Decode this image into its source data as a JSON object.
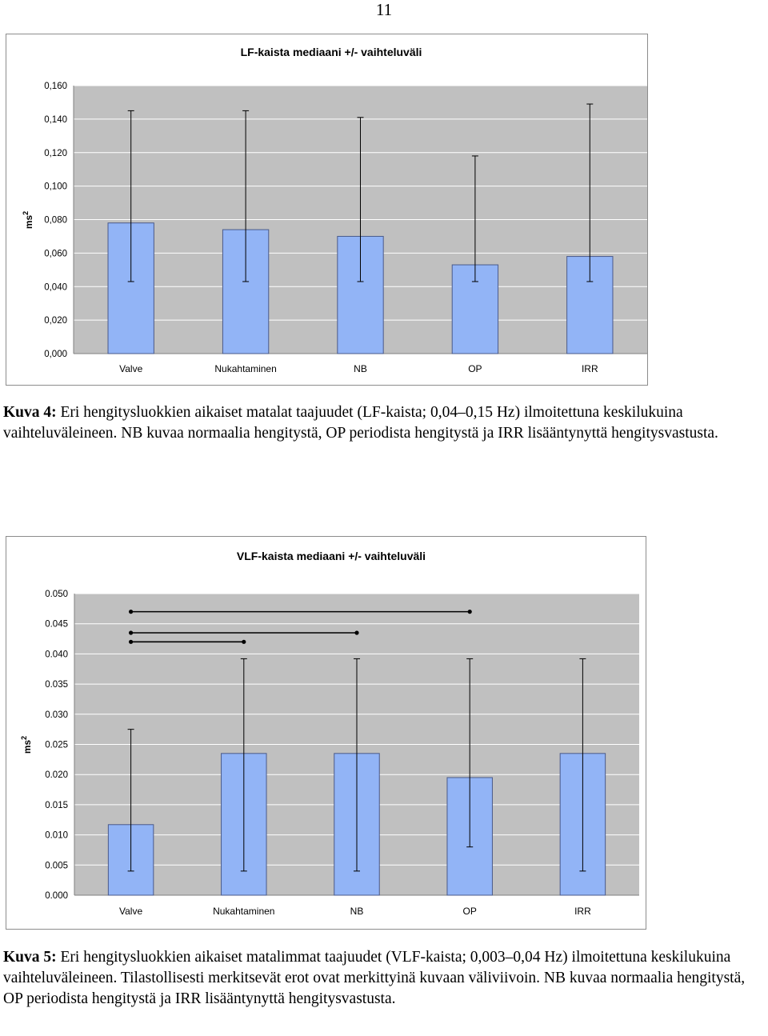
{
  "page_number": "11",
  "colors": {
    "bar": "#92b4f6",
    "bar_border": "#4a5a8a",
    "plot_bg": "#c0c0c0",
    "grid": "#ffffff",
    "line": "#000000"
  },
  "chart_data": [
    {
      "type": "bar",
      "title": "LF-kaista mediaani +/- vaihteluväli",
      "ylabel": "ms2",
      "ylim": [
        0,
        0.16
      ],
      "yticks": [
        0,
        0.02,
        0.04,
        0.06,
        0.08,
        0.1,
        0.12,
        0.14,
        0.16
      ],
      "ytick_labels": [
        "0,000",
        "0,020",
        "0,040",
        "0,060",
        "0,080",
        "0,100",
        "0,120",
        "0,140",
        "0,160"
      ],
      "categories": [
        "Valve",
        "Nukahtaminen",
        "NB",
        "OP",
        "IRR"
      ],
      "values": [
        0.078,
        0.074,
        0.07,
        0.053,
        0.058
      ],
      "error_low": [
        0.043,
        0.043,
        0.043,
        0.043,
        0.043
      ],
      "error_high": [
        0.145,
        0.145,
        0.141,
        0.118,
        0.149
      ],
      "grid": true
    },
    {
      "type": "bar",
      "title": "VLF-kaista mediaani +/- vaihteluväli",
      "ylabel": "ms2",
      "ylim": [
        0,
        0.05
      ],
      "yticks": [
        0,
        0.005,
        0.01,
        0.015,
        0.02,
        0.025,
        0.03,
        0.035,
        0.04,
        0.045,
        0.05
      ],
      "ytick_labels": [
        "0.000",
        "0.005",
        "0.010",
        "0.015",
        "0.020",
        "0.025",
        "0.030",
        "0.035",
        "0.040",
        "0.045",
        "0.050"
      ],
      "categories": [
        "Valve",
        "Nukahtaminen",
        "NB",
        "OP",
        "IRR"
      ],
      "values": [
        0.0117,
        0.0235,
        0.0235,
        0.0195,
        0.0235
      ],
      "error_low": [
        0.004,
        0.004,
        0.004,
        0.008,
        0.004
      ],
      "error_high": [
        0.0275,
        0.0392,
        0.0392,
        0.0392,
        0.0392
      ],
      "significance": [
        {
          "from": 0,
          "to": 3,
          "y": 0.047
        },
        {
          "from": 0,
          "to": 2,
          "y": 0.0435
        },
        {
          "from": 0,
          "to": 1,
          "y": 0.042
        }
      ],
      "grid": true
    }
  ],
  "captions": [
    {
      "label": "Kuva 4:",
      "text": " Eri hengitysluokkien aikaiset matalat taajuudet (LF-kaista; 0,04–0,15 Hz) ilmoitettuna keskilukuina vaihteluväleineen. NB kuvaa normaalia hengitystä, OP periodista hengitystä ja IRR lisääntynyttä hengitysvastusta."
    },
    {
      "label": "Kuva 5:",
      "text": " Eri hengitysluokkien aikaiset matalimmat taajuudet (VLF-kaista; 0,003–0,04 Hz) ilmoitettuna keskilukuina vaihteluväleineen. Tilastollisesti merkitsevät erot ovat merkittyinä kuvaan väliviivoin. NB kuvaa normaalia hengitystä, OP periodista hengitystä ja IRR lisääntynyttä hengitysvastusta."
    }
  ]
}
